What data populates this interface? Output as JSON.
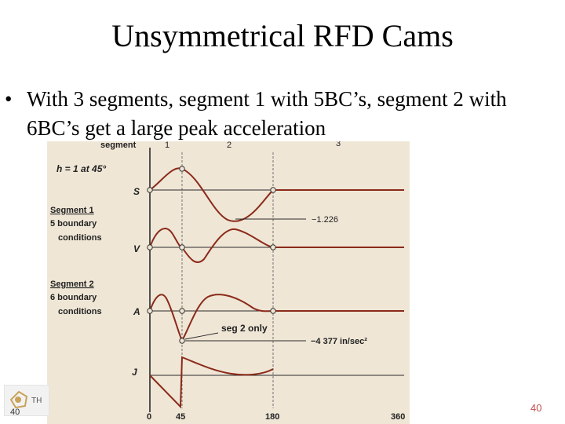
{
  "slide": {
    "title": "Unsymmetrical RFD Cams",
    "bullet_marker": "•",
    "bullet_text": "With 3 segments, segment 1 with 5BC’s, segment 2 with 6BC’s get a large peak acceleration",
    "slide_number": "40",
    "footer_number": "40",
    "logo_text": "TH"
  },
  "figure": {
    "segment_header": "segment",
    "segment_numbers": [
      "1",
      "2",
      "3"
    ],
    "h_label": "h = 1 at 45°",
    "segment1_label": [
      "Segment 1",
      "5 boundary",
      "conditions"
    ],
    "segment2_label": [
      "Segment 2",
      "6 boundary",
      "conditions"
    ],
    "curve_labels": [
      "S",
      "V",
      "A",
      "J"
    ],
    "velocity_min_label": "−1.226",
    "seg2_only_label": "seg 2 only",
    "accel_peak_label": "−4 377 in/sec²",
    "x_ticks": [
      "0",
      "45",
      "180",
      "360"
    ],
    "colors": {
      "curve": "#8b2a1a",
      "axis": "#2b2b2b",
      "title": "#c0504d"
    }
  }
}
